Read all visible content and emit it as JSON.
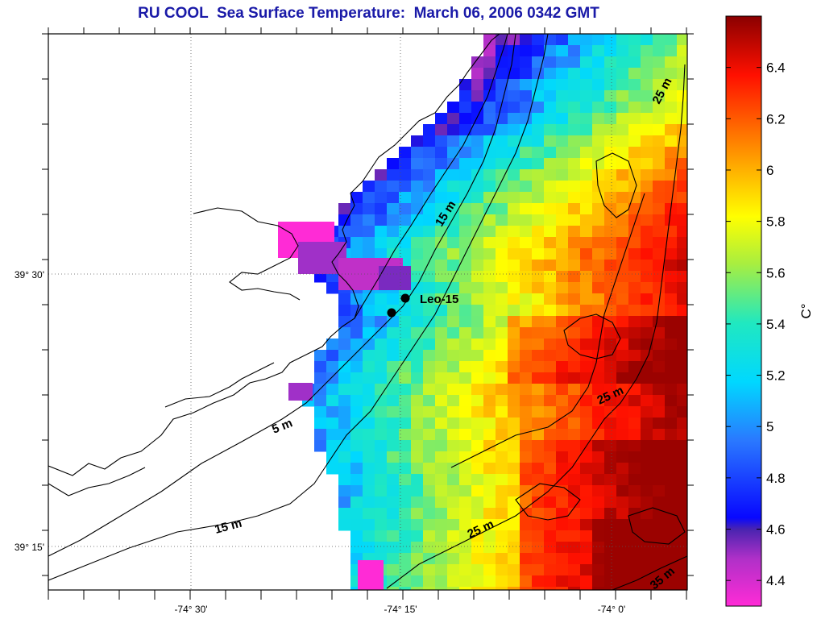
{
  "title": "RU COOL  Sea Surface Temperature:  March 06, 2006 0342 GMT",
  "axes": {
    "x_ticks": [
      "-74° 30'",
      "-74° 15'",
      "-74° 0'"
    ],
    "y_ticks": [
      "39° 30'",
      "39° 15'"
    ]
  },
  "colorbar": {
    "label": "C°",
    "ticks": [
      "6.4",
      "6.2",
      "6",
      "5.8",
      "5.6",
      "5.4",
      "5.2",
      "5",
      "4.8",
      "4.6",
      "4.4"
    ],
    "min": 4.3,
    "max": 6.6
  },
  "station": {
    "name": "Leo-15"
  },
  "isobaths": [
    "5 m",
    "15 m",
    "15 m",
    "25 m",
    "25 m",
    "25 m",
    "35 m"
  ]
}
